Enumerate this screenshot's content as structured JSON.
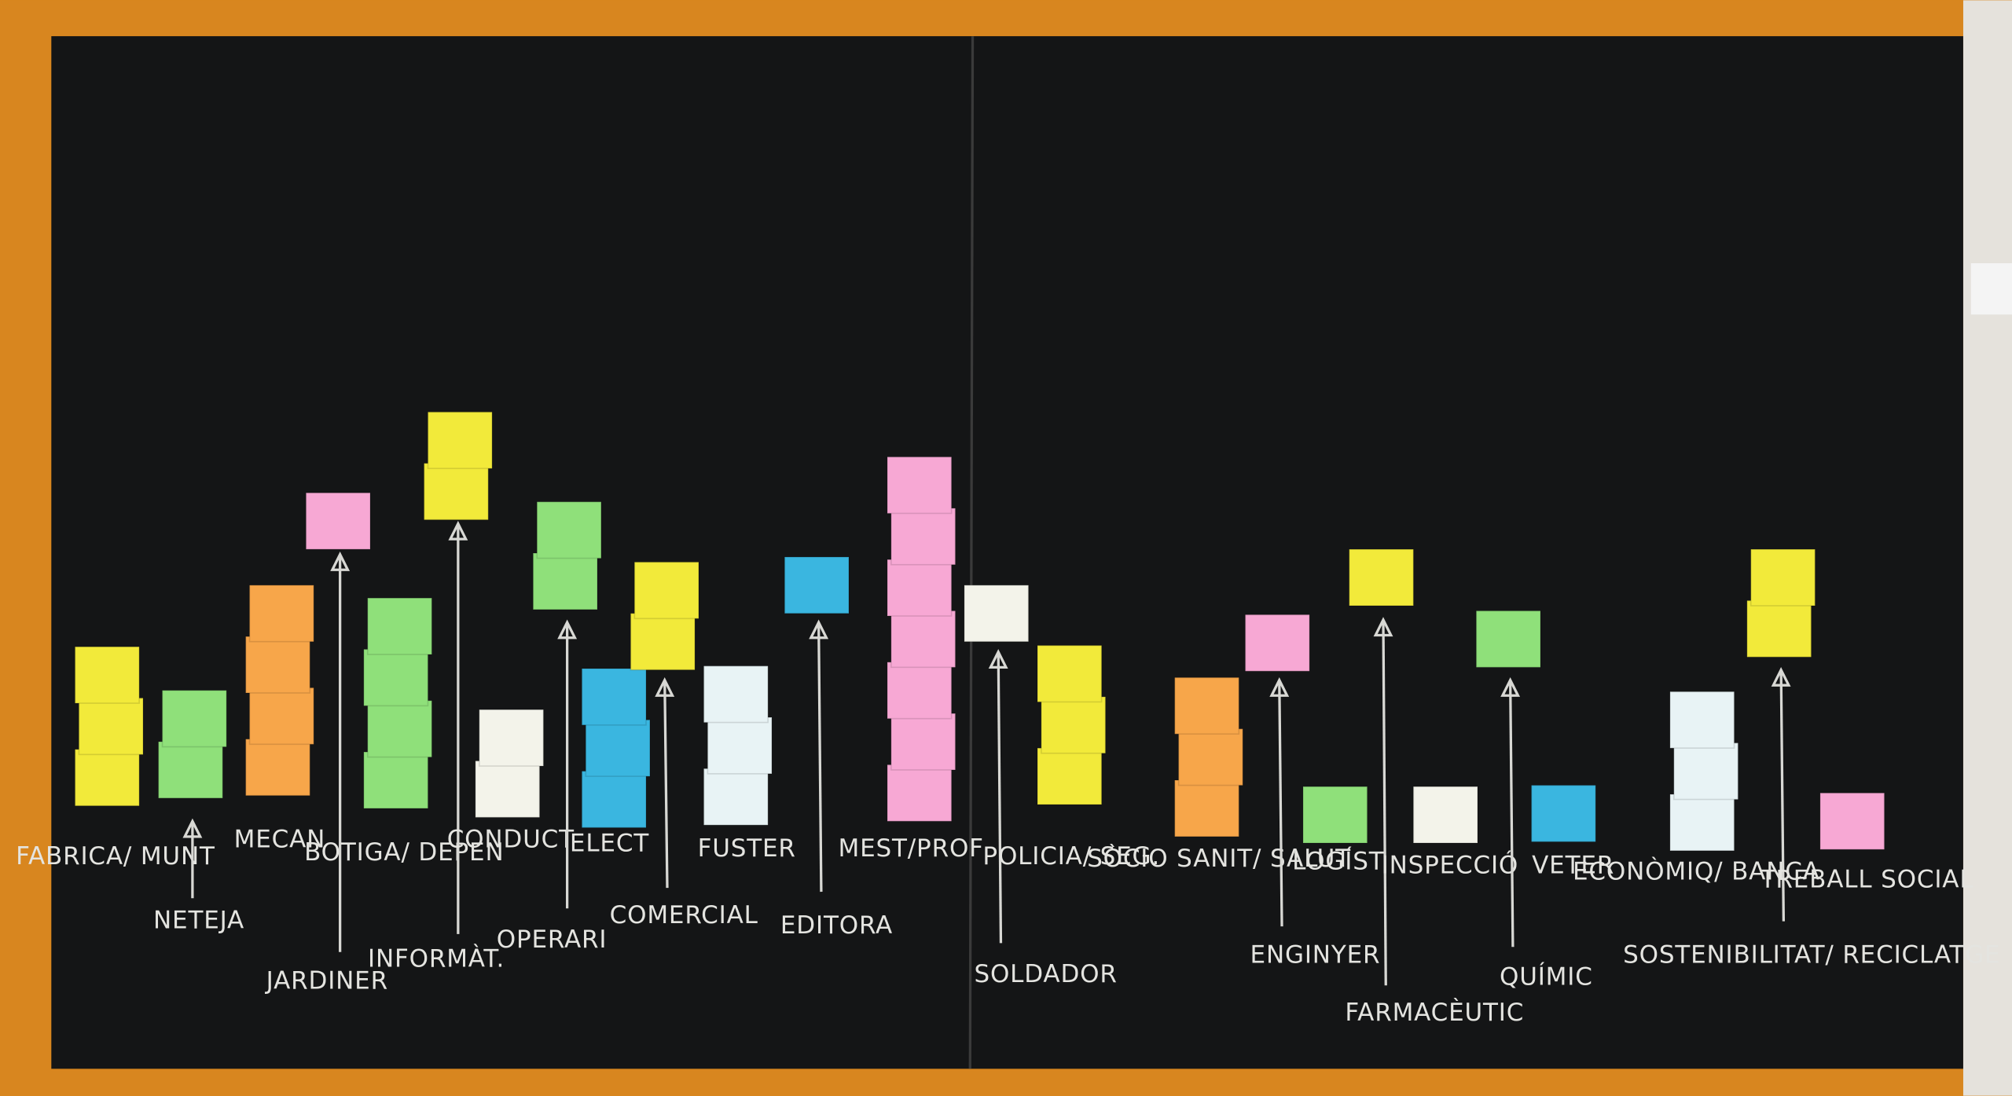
{
  "chart_data": {
    "type": "bar",
    "categories": [
      "FABRICA/ MUNT",
      "NETEJA",
      "MECAN",
      "JARDINER",
      "BOTIGA/ DEPEN",
      "INFORMÀT.",
      "CONDUCT",
      "OPERARI",
      "ELECT",
      "COMERCIAL",
      "FUSTER",
      "EDITORA",
      "MEST/PROF",
      "SOLDADOR",
      "POLICIA/ SEG.",
      "SÒCIO SANIT/ SALUT",
      "ENGINYER",
      "LOGÍST",
      "FARMACÈUTIC",
      "INSPECCIÓ",
      "QUÍMIC",
      "VETER",
      "ECONÒMIQ/ BANCA",
      "SOSTENIBILITAT/ RECICLATGE",
      "TREBALL SOCIAL"
    ],
    "values": [
      3,
      2,
      4,
      1,
      4,
      2,
      2,
      2,
      3,
      2,
      3,
      1,
      7,
      1,
      3,
      3,
      1,
      1,
      1,
      1,
      1,
      1,
      3,
      2,
      1
    ],
    "colors": [
      "#f2ea3a",
      "#8fe07a",
      "#f7a64a",
      "#f7a8d4",
      "#8fe07a",
      "#f2ea3a",
      "#f3f3ea",
      "#8fe07a",
      "#3ab6e0",
      "#f2ea3a",
      "#e8f3f5",
      "#3ab6e0",
      "#f7a8d4",
      "#f3f3ea",
      "#f2ea3a",
      "#f7a64a",
      "#f7a8d4",
      "#8fe07a",
      "#f2ea3a",
      "#f3f3ea",
      "#8fe07a",
      "#3ab6e0",
      "#e8f3f5",
      "#f2ea3a",
      "#f7a8d4"
    ]
  }
}
